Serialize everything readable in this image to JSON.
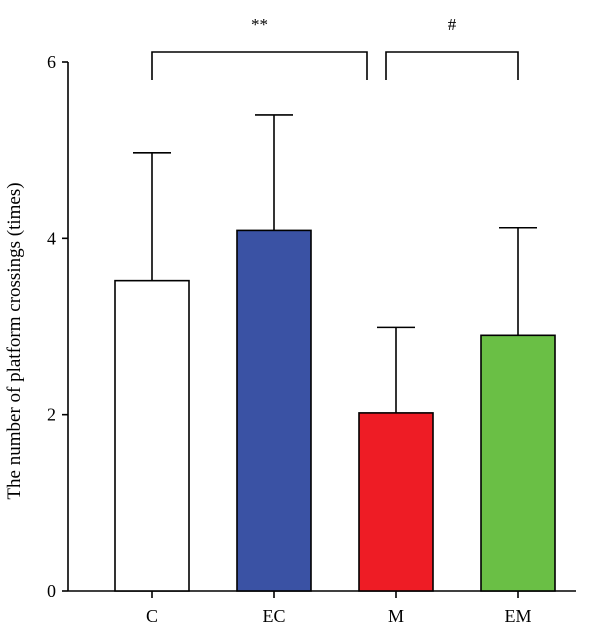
{
  "chart_data": {
    "type": "bar",
    "ylabel": "The number of platform crossings (times)",
    "categories": [
      "C",
      "EC",
      "M",
      "EM"
    ],
    "values": [
      3.52,
      4.09,
      2.02,
      2.9
    ],
    "errors_upper": [
      4.97,
      5.4,
      2.99,
      4.12
    ],
    "colors": [
      "#ffffff",
      "#3a52a4",
      "#ee1c25",
      "#6abf45"
    ],
    "ylim": [
      0,
      6
    ],
    "yticks": [
      "0",
      "2",
      "4",
      "6"
    ],
    "ytick_values": [
      0,
      2,
      4,
      6
    ],
    "grid": false,
    "significance": [
      {
        "from": "C",
        "to": "M",
        "label": "**"
      },
      {
        "from": "M",
        "to": "EM",
        "label": "#"
      }
    ]
  }
}
